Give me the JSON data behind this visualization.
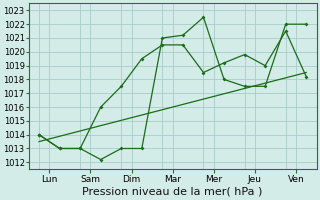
{
  "xlabel": "Pression niveau de la mer( hPa )",
  "background_color": "#d4ece8",
  "grid_color": "#a8ccca",
  "line_color": "#1a6b1a",
  "x_labels": [
    "Lun",
    "Sam",
    "Dim",
    "Mar",
    "Mer",
    "Jeu",
    "Ven"
  ],
  "ylim": [
    1011.5,
    1023.5
  ],
  "yticks": [
    1012,
    1013,
    1014,
    1015,
    1016,
    1017,
    1018,
    1019,
    1020,
    1021,
    1022,
    1023
  ],
  "series1_x": [
    0,
    1,
    2,
    3,
    4,
    5,
    6,
    7,
    8,
    9,
    10,
    11,
    12,
    13
  ],
  "series1_y": [
    1014.0,
    1013.0,
    1013.0,
    1012.2,
    1013.0,
    1013.0,
    1021.0,
    1021.2,
    1022.5,
    1018.0,
    1017.5,
    1017.5,
    1022.0,
    1022.0
  ],
  "series2_x": [
    0,
    1,
    2,
    3,
    4,
    5,
    6,
    7,
    8,
    9,
    10,
    11,
    12,
    13
  ],
  "series2_y": [
    1014.0,
    1013.0,
    1013.0,
    1016.0,
    1017.5,
    1019.5,
    1020.5,
    1020.5,
    1018.5,
    1019.2,
    1019.8,
    1019.0,
    1021.5,
    1018.2
  ],
  "trend_x": [
    0,
    13
  ],
  "trend_y": [
    1013.5,
    1018.5
  ],
  "xtick_positions": [
    0.5,
    2.5,
    4.5,
    6.5,
    8.5,
    10.5,
    12.5
  ],
  "xlim": [
    -0.5,
    13.5
  ],
  "fontsize_xlabel": 8,
  "fontsize_ytick": 6,
  "fontsize_xtick": 6.5
}
